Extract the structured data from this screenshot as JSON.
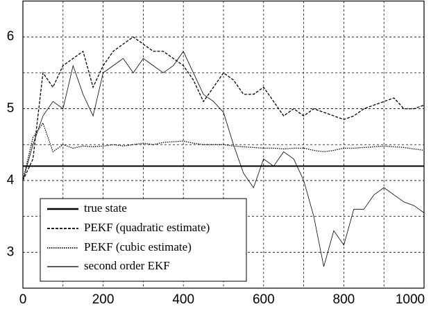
{
  "chart_data": {
    "type": "line",
    "x": [
      0,
      25,
      50,
      75,
      100,
      125,
      150,
      175,
      200,
      225,
      250,
      275,
      300,
      325,
      350,
      375,
      400,
      425,
      450,
      475,
      500,
      525,
      550,
      575,
      600,
      625,
      650,
      675,
      700,
      725,
      750,
      775,
      800,
      825,
      850,
      875,
      900,
      925,
      950,
      975,
      1000
    ],
    "series": [
      {
        "name": "true state",
        "color": "#000000",
        "dash": "solid",
        "width": 2,
        "values": [
          4.2,
          4.2,
          4.2,
          4.2,
          4.2,
          4.2,
          4.2,
          4.2,
          4.2,
          4.2,
          4.2,
          4.2,
          4.2,
          4.2,
          4.2,
          4.2,
          4.2,
          4.2,
          4.2,
          4.2,
          4.2,
          4.2,
          4.2,
          4.2,
          4.2,
          4.2,
          4.2,
          4.2,
          4.2,
          4.2,
          4.2,
          4.2,
          4.2,
          4.2,
          4.2,
          4.2,
          4.2,
          4.2,
          4.2,
          4.2,
          4.2
        ]
      },
      {
        "name": "PEKF (quadratic estimate)",
        "color": "#000000",
        "dash": "dashed",
        "width": 1.3,
        "values": [
          4.0,
          4.3,
          5.5,
          5.3,
          5.6,
          5.7,
          5.8,
          5.3,
          5.6,
          5.8,
          5.9,
          6.0,
          5.9,
          5.8,
          5.8,
          5.7,
          5.6,
          5.4,
          5.1,
          5.3,
          5.5,
          5.4,
          5.2,
          5.2,
          5.3,
          5.1,
          4.9,
          5.0,
          4.9,
          5.0,
          4.95,
          4.9,
          4.85,
          4.9,
          5.0,
          5.05,
          5.1,
          5.15,
          5.0,
          5.0,
          5.05
        ]
      },
      {
        "name": "PEKF (cubic estimate)",
        "color": "#000000",
        "dash": "dotted",
        "width": 1.3,
        "values": [
          4.0,
          4.6,
          4.8,
          4.4,
          4.5,
          4.45,
          4.48,
          4.47,
          4.48,
          4.5,
          4.48,
          4.5,
          4.52,
          4.5,
          4.53,
          4.54,
          4.55,
          4.52,
          4.5,
          4.5,
          4.5,
          4.48,
          4.47,
          4.46,
          4.45,
          4.45,
          4.44,
          4.45,
          4.45,
          4.42,
          4.4,
          4.42,
          4.45,
          4.45,
          4.46,
          4.47,
          4.48,
          4.47,
          4.46,
          4.44,
          4.42
        ]
      },
      {
        "name": "second order EKF",
        "color": "#000000",
        "dash": "solid",
        "width": 0.8,
        "values": [
          4.0,
          4.5,
          4.9,
          5.1,
          5.0,
          5.6,
          5.2,
          4.9,
          5.5,
          5.6,
          5.7,
          5.5,
          5.7,
          5.6,
          5.5,
          5.6,
          5.8,
          5.5,
          5.2,
          5.1,
          4.95,
          4.5,
          4.1,
          3.9,
          4.3,
          4.2,
          4.4,
          4.3,
          4.0,
          3.5,
          2.8,
          3.3,
          3.1,
          3.6,
          3.6,
          3.8,
          3.9,
          3.8,
          3.7,
          3.65,
          3.55
        ]
      }
    ],
    "xlim": [
      0,
      1000
    ],
    "xticks": [
      0,
      200,
      400,
      600,
      800,
      1000
    ],
    "xgrid": [
      100,
      300,
      500,
      700,
      900
    ],
    "ylim": [
      2.5,
      6.5
    ],
    "yticks": [
      3,
      4,
      5,
      6
    ],
    "ygrid": [
      3.5,
      4.5,
      5.5
    ],
    "grid": true,
    "legend": "lower left"
  }
}
